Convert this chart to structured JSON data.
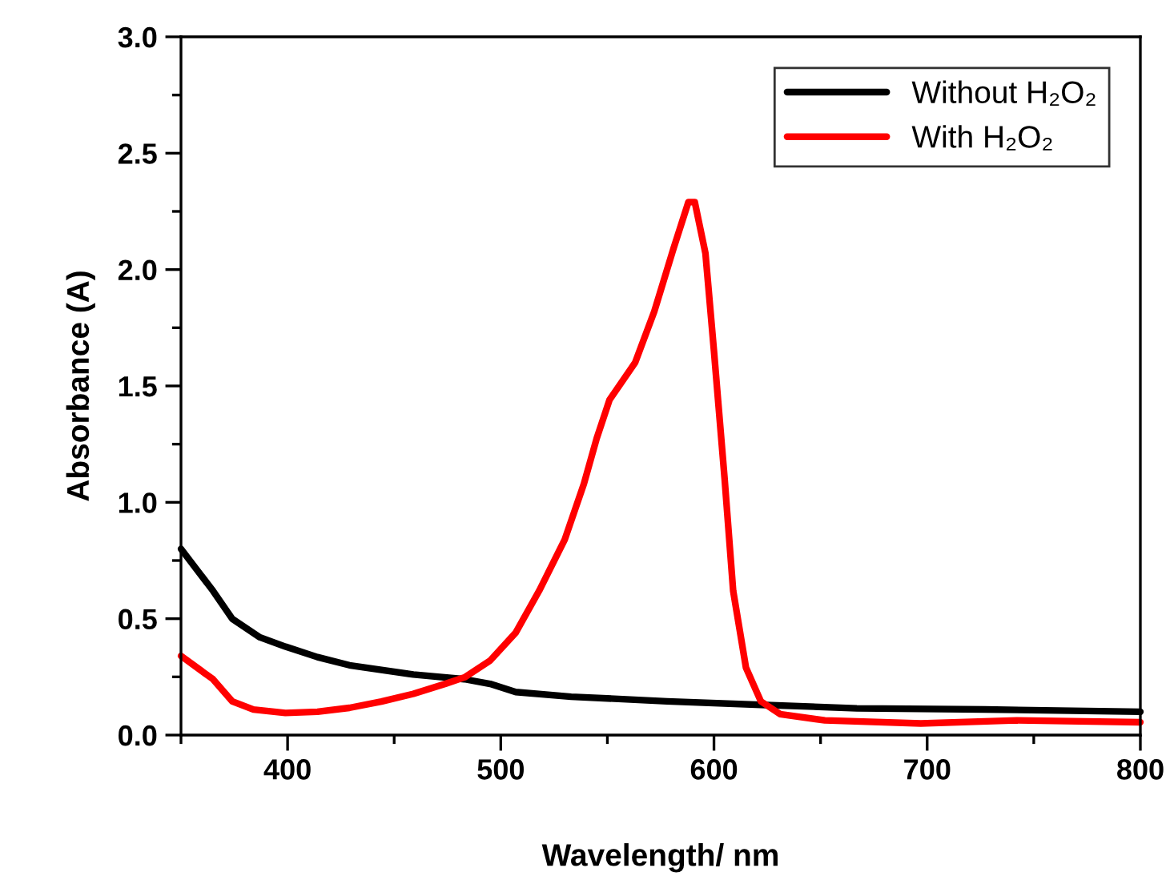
{
  "chart_data": {
    "type": "line",
    "xlabel": "Wavelength/ nm",
    "ylabel": "Absorbance (A)",
    "xlim": [
      350,
      800
    ],
    "ylim": [
      0,
      3.0
    ],
    "xticks": [
      {
        "value": 350,
        "label": null
      },
      400,
      {
        "value": 450,
        "label": null
      },
      500,
      {
        "value": 550,
        "label": null
      },
      600,
      {
        "value": 650,
        "label": null
      },
      700,
      {
        "value": 750,
        "label": null
      },
      800
    ],
    "yticks": [
      {
        "value": 0,
        "label": "0.0"
      },
      {
        "value": 0.25,
        "label": null
      },
      0.5,
      {
        "value": 0.75,
        "label": null
      },
      {
        "value": 1.0,
        "label": "1.0"
      },
      {
        "value": 1.25,
        "label": null
      },
      1.5,
      {
        "value": 1.75,
        "label": null
      },
      {
        "value": 2.0,
        "label": "2.0"
      },
      {
        "value": 2.25,
        "label": null
      },
      2.5,
      {
        "value": 2.75,
        "label": null
      },
      {
        "value": 3.0,
        "label": "3.0"
      }
    ],
    "grid": false,
    "legend": "top right",
    "marker": "none",
    "line_style": "solid",
    "series": [
      {
        "name": "Without H₂O₂",
        "color": "#000000",
        "x": [
          350,
          365,
          374,
          387,
          399,
          414,
          429,
          459,
          483,
          495,
          507,
          533,
          578,
          622,
          667,
          727,
          800
        ],
        "values": [
          0.8,
          0.62,
          0.5,
          0.42,
          0.38,
          0.335,
          0.3,
          0.26,
          0.24,
          0.22,
          0.185,
          0.165,
          0.145,
          0.13,
          0.115,
          0.11,
          0.1
        ]
      },
      {
        "name": "With H₂O₂",
        "color": "#ff0000",
        "x": [
          350,
          365,
          374,
          384,
          399,
          414,
          429,
          444,
          459,
          474,
          483,
          495,
          507,
          518,
          530,
          539,
          545,
          551,
          563,
          572,
          581,
          588,
          591,
          596,
          600,
          605,
          609,
          615,
          622,
          631,
          652,
          697,
          742,
          800
        ],
        "values": [
          0.34,
          0.24,
          0.145,
          0.11,
          0.095,
          0.1,
          0.117,
          0.144,
          0.177,
          0.22,
          0.248,
          0.32,
          0.44,
          0.62,
          0.84,
          1.08,
          1.275,
          1.44,
          1.6,
          1.82,
          2.09,
          2.29,
          2.29,
          2.07,
          1.65,
          1.1,
          0.62,
          0.29,
          0.145,
          0.09,
          0.063,
          0.05,
          0.063,
          0.055
        ]
      }
    ]
  }
}
